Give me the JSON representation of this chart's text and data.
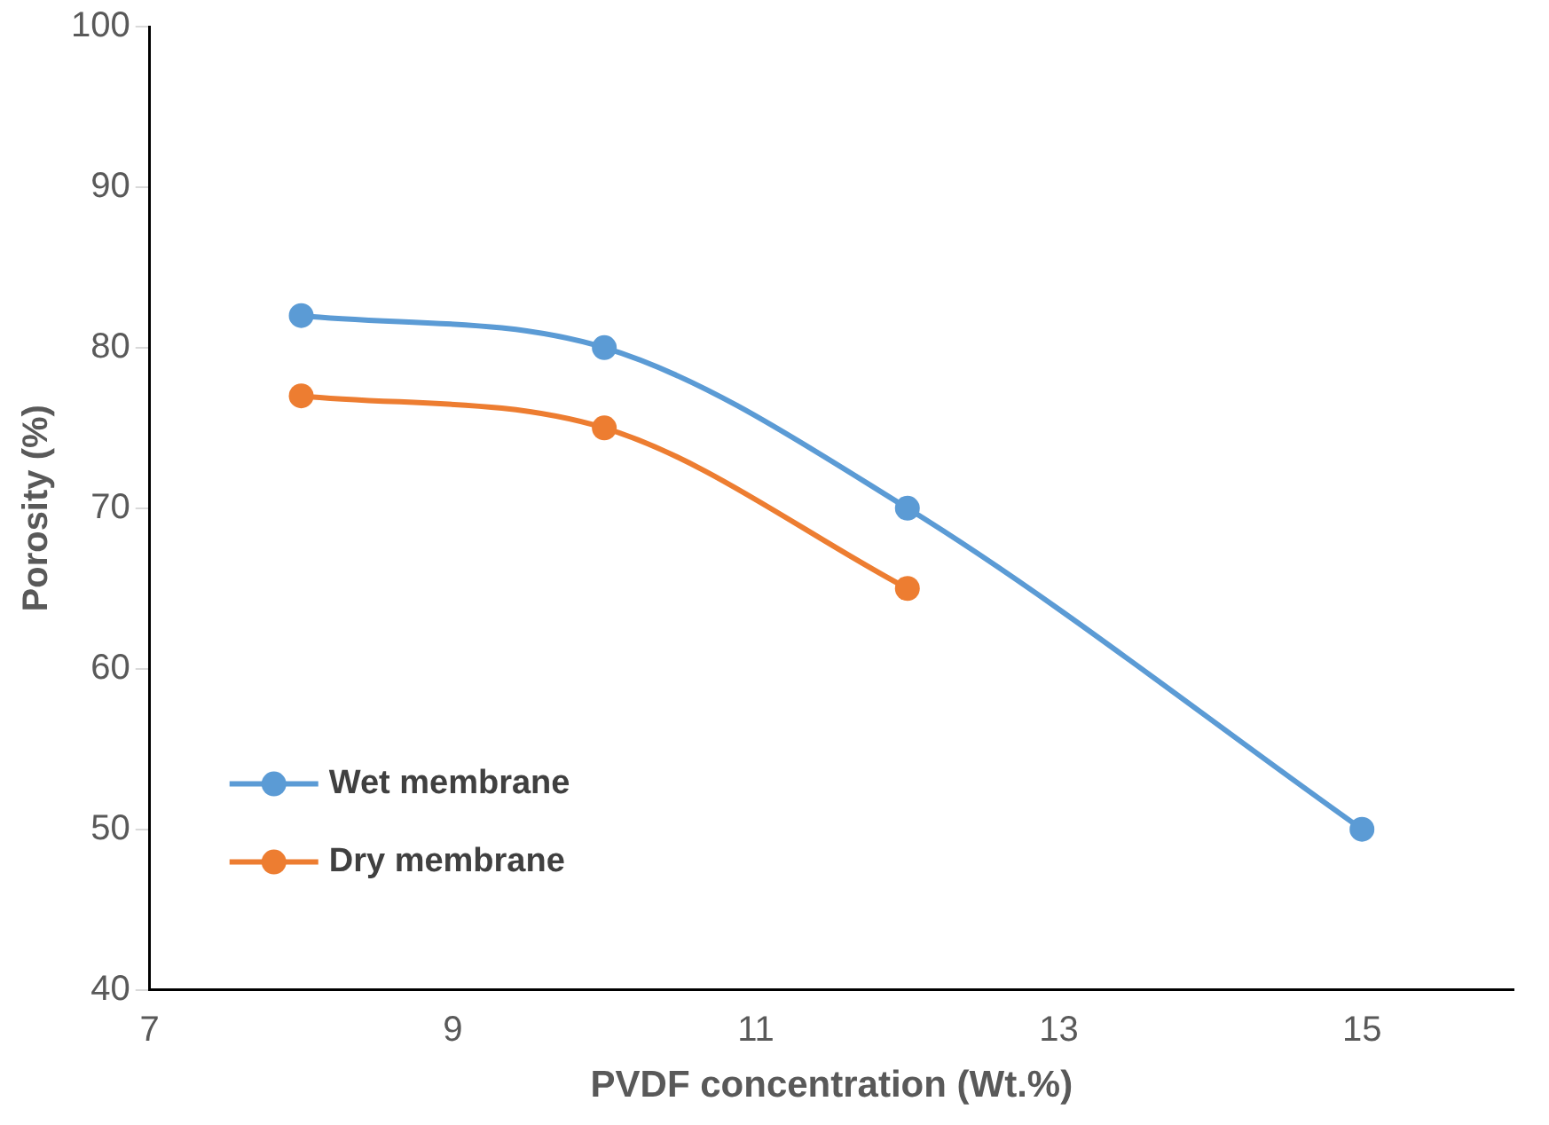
{
  "chart_data": {
    "type": "line",
    "xlabel": "PVDF concentration (Wt.%)",
    "ylabel": "Porosity (%)",
    "xlim": [
      7,
      16
    ],
    "xticks": [
      7,
      9,
      11,
      13,
      15
    ],
    "ylim": [
      40,
      100
    ],
    "yticks": [
      40,
      50,
      60,
      70,
      80,
      90,
      100
    ],
    "grid": false,
    "legend": "bottom left",
    "marker": "circle",
    "line_style": "solid",
    "series": [
      {
        "name": "Wet membrane",
        "color": "#5b9bd5",
        "x": [
          8,
          10,
          12,
          15
        ],
        "values": [
          82,
          80,
          70,
          50
        ]
      },
      {
        "name": "Dry membrane",
        "color": "#ed7d31",
        "x": [
          8,
          10,
          12
        ],
        "values": [
          77,
          75,
          65
        ]
      }
    ]
  }
}
